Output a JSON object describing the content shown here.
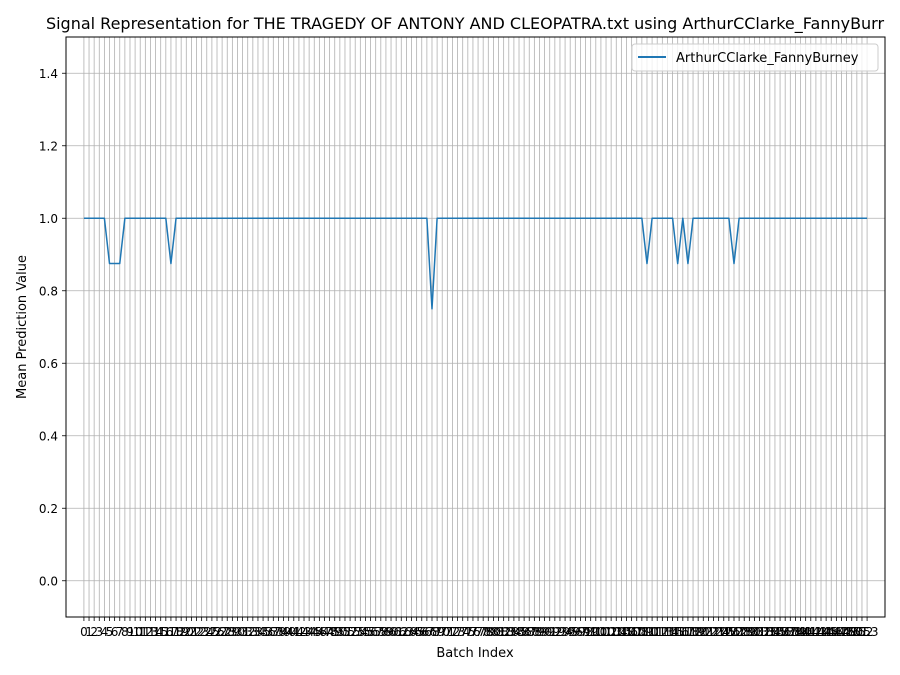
{
  "chart_data": {
    "type": "line",
    "title": "Signal Representation for THE TRAGEDY OF ANTONY AND CLEOPATRA.txt using ArthurCClarke_FannyBurr",
    "xlabel": "Batch Index",
    "ylabel": "Mean Prediction Value",
    "ylim": [
      -0.1,
      1.5
    ],
    "xlim": [
      -3.5,
      156.5
    ],
    "yticks": [
      0.0,
      0.2,
      0.4,
      0.6,
      0.8,
      1.0,
      1.2,
      1.4
    ],
    "ytick_labels": [
      "0.0",
      "0.2",
      "0.4",
      "0.6",
      "0.8",
      "1.0",
      "1.2",
      "1.4"
    ],
    "grid": true,
    "legend": "top-right",
    "x": [
      0,
      1,
      2,
      3,
      4,
      5,
      6,
      7,
      8,
      9,
      10,
      11,
      12,
      13,
      14,
      15,
      16,
      17,
      18,
      19,
      20,
      21,
      22,
      23,
      24,
      25,
      26,
      27,
      28,
      29,
      30,
      31,
      32,
      33,
      34,
      35,
      36,
      37,
      38,
      39,
      40,
      41,
      42,
      43,
      44,
      45,
      46,
      47,
      48,
      49,
      50,
      51,
      52,
      53,
      54,
      55,
      56,
      57,
      58,
      59,
      60,
      61,
      62,
      63,
      64,
      65,
      66,
      67,
      68,
      69,
      70,
      71,
      72,
      73,
      74,
      75,
      76,
      77,
      78,
      79,
      80,
      81,
      82,
      83,
      84,
      85,
      86,
      87,
      88,
      89,
      90,
      91,
      92,
      93,
      94,
      95,
      96,
      97,
      98,
      99,
      100,
      101,
      102,
      103,
      104,
      105,
      106,
      107,
      108,
      109,
      110,
      111,
      112,
      113,
      114,
      115,
      116,
      117,
      118,
      119,
      120,
      121,
      122,
      123,
      124,
      125,
      126,
      127,
      128,
      129,
      130,
      131,
      132,
      133,
      134,
      135,
      136,
      137,
      138,
      139,
      140,
      141,
      142,
      143,
      144,
      145,
      146,
      147,
      148,
      149,
      150,
      151,
      152,
      153
    ],
    "series": [
      {
        "name": "ArthurCClarke_FannyBurney",
        "color": "#1f77b4",
        "values": [
          1,
          1,
          1,
          1,
          1,
          0.875,
          0.875,
          0.875,
          1,
          1,
          1,
          1,
          1,
          1,
          1,
          1,
          1,
          0.875,
          1,
          1,
          1,
          1,
          1,
          1,
          1,
          1,
          1,
          1,
          1,
          1,
          1,
          1,
          1,
          1,
          1,
          1,
          1,
          1,
          1,
          1,
          1,
          1,
          1,
          1,
          1,
          1,
          1,
          1,
          1,
          1,
          1,
          1,
          1,
          1,
          1,
          1,
          1,
          1,
          1,
          1,
          1,
          1,
          1,
          1,
          1,
          1,
          1,
          1,
          0.75,
          1,
          1,
          1,
          1,
          1,
          1,
          1,
          1,
          1,
          1,
          1,
          1,
          1,
          1,
          1,
          1,
          1,
          1,
          1,
          1,
          1,
          1,
          1,
          1,
          1,
          1,
          1,
          1,
          1,
          1,
          1,
          1,
          1,
          1,
          1,
          1,
          1,
          1,
          1,
          1,
          1,
          0.875,
          1,
          1,
          1,
          1,
          1,
          0.875,
          1,
          0.875,
          1,
          1,
          1,
          1,
          1,
          1,
          1,
          1,
          0.875,
          1,
          1,
          1,
          1,
          1,
          1,
          1,
          1,
          1,
          1,
          1,
          1,
          1,
          1,
          1,
          1,
          1,
          1,
          1,
          1,
          1,
          1,
          1,
          1,
          1,
          1
        ]
      }
    ],
    "xtick_labels": [
      "0",
      "1",
      "2",
      "3",
      "4",
      "5",
      "6",
      "7",
      "8",
      "9",
      "10",
      "11",
      "12",
      "13",
      "14",
      "15",
      "16",
      "17",
      "18",
      "19",
      "20",
      "21",
      "22",
      "23",
      "24",
      "25",
      "26",
      "27",
      "28",
      "29",
      "30",
      "31",
      "32",
      "33",
      "34",
      "35",
      "36",
      "37",
      "38",
      "39",
      "40",
      "41",
      "42",
      "43",
      "44",
      "45",
      "46",
      "47",
      "48",
      "49",
      "50",
      "51",
      "52",
      "53",
      "54",
      "55",
      "56",
      "57",
      "58",
      "59",
      "60",
      "61",
      "62",
      "63",
      "64",
      "65",
      "66",
      "67",
      "68",
      "69",
      "70",
      "71",
      "72",
      "73",
      "74",
      "75",
      "76",
      "77",
      "78",
      "79",
      "80",
      "81",
      "82",
      "83",
      "84",
      "85",
      "86",
      "87",
      "88",
      "89",
      "90",
      "91",
      "92",
      "93",
      "94",
      "95",
      "96",
      "97",
      "98",
      "99",
      "100",
      "101",
      "102",
      "103",
      "104",
      "105",
      "106",
      "107",
      "108",
      "109",
      "110",
      "111",
      "112",
      "113",
      "114",
      "115",
      "116",
      "117",
      "118",
      "119",
      "120",
      "121",
      "122",
      "123",
      "124",
      "125",
      "126",
      "127",
      "128",
      "129",
      "130",
      "131",
      "132",
      "133",
      "134",
      "135",
      "136",
      "137",
      "138",
      "139",
      "140",
      "141",
      "142",
      "143",
      "144",
      "145",
      "146",
      "147",
      "148",
      "149",
      "150",
      "151",
      "152",
      "153"
    ]
  }
}
